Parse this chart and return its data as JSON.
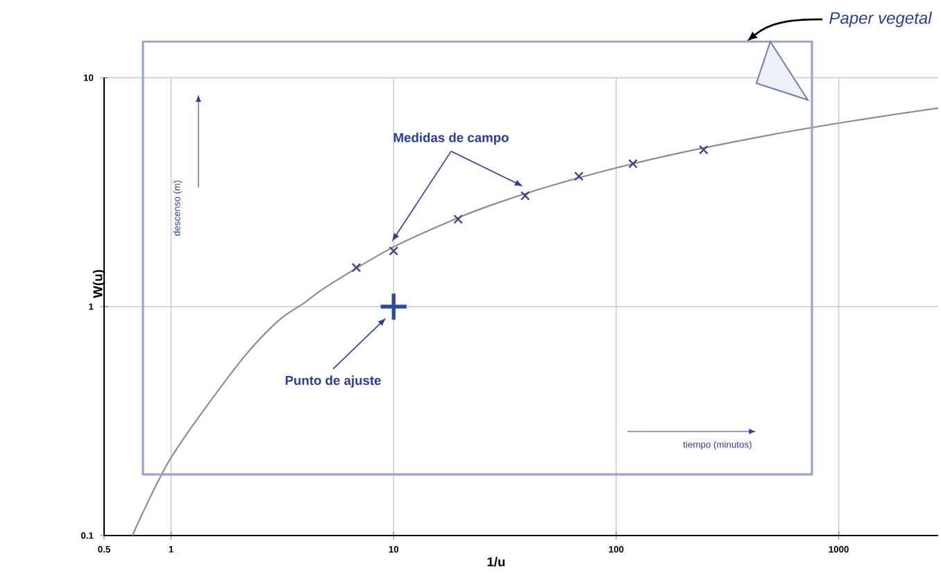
{
  "chart_data": {
    "type": "line",
    "xlabel": "1/u",
    "ylabel": "W(u)",
    "log": "xy",
    "grid": true,
    "xlim": [
      0.5,
      2800
    ],
    "ylim": [
      0.1,
      10
    ],
    "xticks": [
      0.5,
      1,
      10,
      100,
      1000
    ],
    "yticks": [
      0.1,
      1,
      10
    ],
    "series": [
      {
        "color": "#8c8c8c",
        "marker": "none",
        "x": [
          0.67,
          1,
          2,
          3,
          4,
          5,
          10,
          20,
          30,
          50,
          100,
          200,
          500,
          1000,
          2000,
          2800
        ],
        "values": [
          0.1,
          0.219,
          0.56,
          0.86,
          1.044,
          1.223,
          1.823,
          2.468,
          2.86,
          3.355,
          4.038,
          4.726,
          5.639,
          6.332,
          7.024,
          7.36
        ]
      },
      {
        "type": "scatter",
        "name": "Medidas de campo",
        "color": "#3a4a8a",
        "marker": "cross",
        "x": [
          6.8,
          10,
          19.5,
          39,
          68,
          119,
          247
        ],
        "values": [
          1.48,
          1.75,
          2.41,
          3.05,
          3.71,
          4.21,
          4.84
        ]
      },
      {
        "type": "scatter",
        "name": "Punto de ajuste",
        "color": "#2b4aa0",
        "marker": "plus",
        "x": [
          10
        ],
        "values": [
          1
        ]
      }
    ],
    "annotations": [
      "descenso (m)",
      "tiempo (minutos)",
      "Paper vegetal"
    ]
  }
}
